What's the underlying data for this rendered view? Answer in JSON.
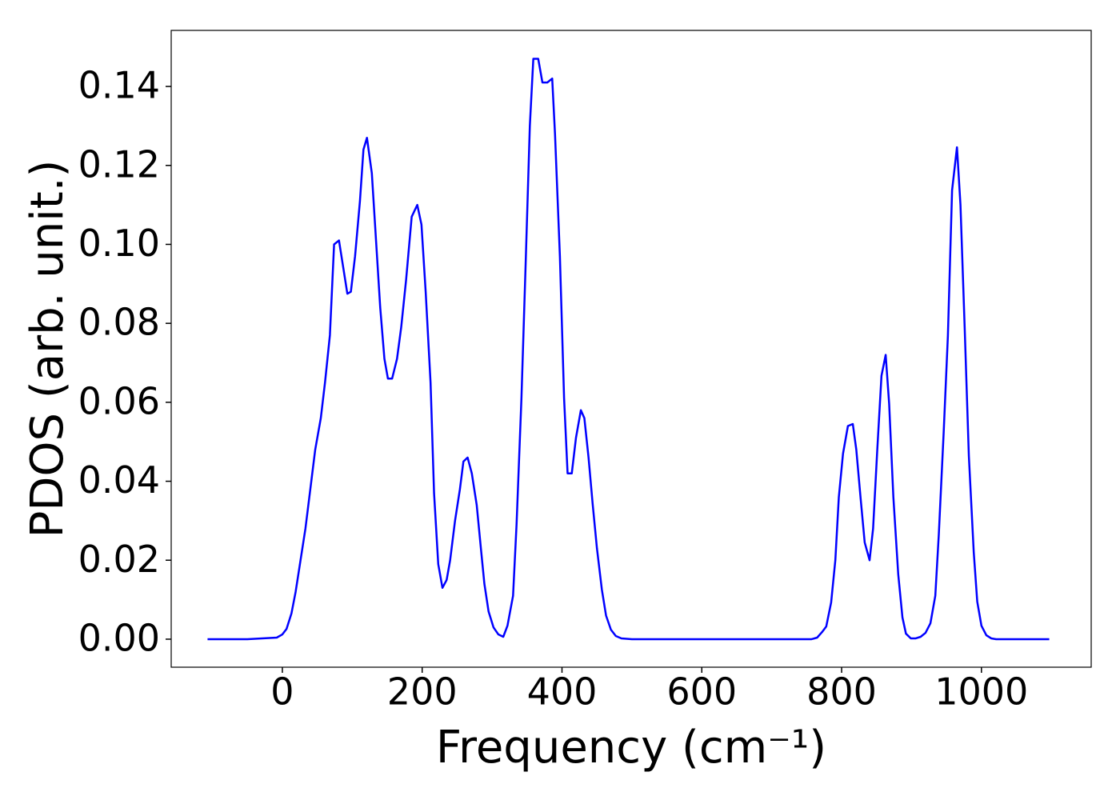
{
  "chart_data": {
    "type": "line",
    "xlabel": "Frequency (cm⁻¹)",
    "ylabel": "PDOS (arb. unit.)",
    "x": [
      -107,
      -50,
      -8,
      0,
      6,
      13,
      19,
      26,
      33,
      40,
      47,
      55,
      61,
      68,
      74,
      81,
      93,
      98,
      104,
      111,
      116,
      121,
      128,
      134,
      140,
      146,
      151,
      157,
      164,
      170,
      177,
      185,
      193,
      199,
      205,
      212,
      217,
      223,
      229,
      235,
      240,
      247,
      254,
      259,
      265,
      271,
      278,
      284,
      289,
      295,
      302,
      309,
      316,
      322,
      330,
      335,
      342,
      348,
      354,
      359,
      366,
      372,
      379,
      386,
      390,
      397,
      403,
      408,
      414,
      420,
      427,
      432,
      438,
      444,
      450,
      457,
      463,
      470,
      477,
      485,
      500,
      757,
      765,
      772,
      778,
      785,
      791,
      796,
      802,
      809,
      816,
      821,
      827,
      833,
      840,
      845,
      851,
      857,
      863,
      868,
      874,
      881,
      887,
      892,
      899,
      906,
      913,
      920,
      927,
      934,
      939,
      946,
      952,
      958,
      965,
      970,
      976,
      982,
      989,
      994,
      1000,
      1007,
      1014,
      1021,
      1097
    ],
    "values": [
      0,
      0,
      0.0004,
      0.0012,
      0.0026,
      0.0065,
      0.012,
      0.02,
      0.028,
      0.038,
      0.048,
      0.056,
      0.065,
      0.077,
      0.1,
      0.101,
      0.0875,
      0.088,
      0.097,
      0.111,
      0.124,
      0.127,
      0.118,
      0.101,
      0.084,
      0.071,
      0.066,
      0.066,
      0.071,
      0.079,
      0.091,
      0.107,
      0.11,
      0.105,
      0.088,
      0.065,
      0.037,
      0.019,
      0.013,
      0.015,
      0.02,
      0.03,
      0.038,
      0.045,
      0.046,
      0.042,
      0.034,
      0.023,
      0.014,
      0.007,
      0.003,
      0.0012,
      0.0006,
      0.0034,
      0.011,
      0.029,
      0.061,
      0.095,
      0.13,
      0.147,
      0.147,
      0.141,
      0.141,
      0.142,
      0.128,
      0.097,
      0.061,
      0.042,
      0.042,
      0.051,
      0.058,
      0.056,
      0.046,
      0.034,
      0.023,
      0.0126,
      0.006,
      0.0024,
      0.0008,
      0.0002,
      0,
      0,
      0.0004,
      0.0018,
      0.0032,
      0.0093,
      0.02,
      0.036,
      0.047,
      0.054,
      0.0545,
      0.048,
      0.036,
      0.0245,
      0.02,
      0.028,
      0.048,
      0.0667,
      0.072,
      0.0596,
      0.036,
      0.0164,
      0.0055,
      0.0014,
      0.0002,
      0.0002,
      0.0006,
      0.0016,
      0.004,
      0.011,
      0.0265,
      0.0525,
      0.0768,
      0.1137,
      0.1246,
      0.11,
      0.079,
      0.0464,
      0.022,
      0.0095,
      0.0034,
      0.001,
      0.0002,
      0,
      0
    ],
    "color": "#0000ff",
    "xlim": [
      -159,
      1157
    ],
    "xticks": [
      0,
      200,
      400,
      600,
      800,
      1000
    ],
    "ylim": [
      -0.0071,
      0.1542
    ],
    "yticks": [
      {
        "value": 0,
        "label": "0.00"
      },
      {
        "value": 0.02,
        "label": "0.02"
      },
      {
        "value": 0.04,
        "label": "0.04"
      },
      {
        "value": 0.06,
        "label": "0.06"
      },
      {
        "value": 0.08,
        "label": "0.08"
      },
      {
        "value": 0.1,
        "label": "0.10"
      },
      {
        "value": 0.12,
        "label": "0.12"
      },
      {
        "value": 0.14,
        "label": "0.14"
      }
    ],
    "grid": false
  }
}
